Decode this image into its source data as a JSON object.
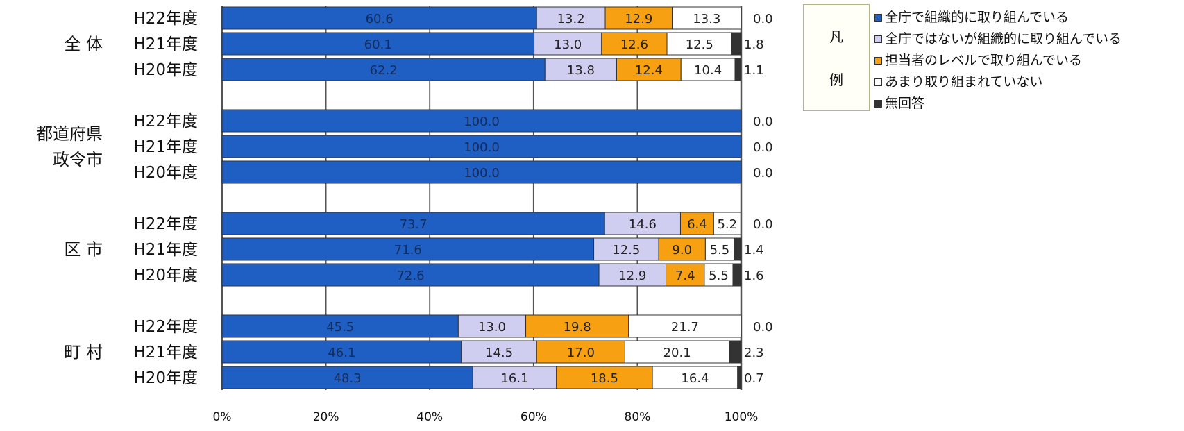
{
  "chart_data": {
    "type": "bar",
    "orientation": "horizontal",
    "stacked": true,
    "groups": [
      {
        "label": "全 体",
        "rows": [
          {
            "label": "H22年度",
            "values": [
              60.6,
              13.2,
              12.9,
              13.3,
              0.0
            ]
          },
          {
            "label": "H21年度",
            "values": [
              60.1,
              13.0,
              12.6,
              12.5,
              1.8
            ]
          },
          {
            "label": "H20年度",
            "values": [
              62.2,
              13.8,
              12.4,
              10.4,
              1.1
            ]
          }
        ]
      },
      {
        "label": "都道府県\n政令市",
        "rows": [
          {
            "label": "H22年度",
            "values": [
              100.0,
              0,
              0,
              0,
              0.0
            ]
          },
          {
            "label": "H21年度",
            "values": [
              100.0,
              0,
              0,
              0,
              0.0
            ]
          },
          {
            "label": "H20年度",
            "values": [
              100.0,
              0,
              0,
              0,
              0.0
            ]
          }
        ]
      },
      {
        "label": "区 市",
        "rows": [
          {
            "label": "H22年度",
            "values": [
              73.7,
              14.6,
              6.4,
              5.2,
              0.0
            ]
          },
          {
            "label": "H21年度",
            "values": [
              71.6,
              12.5,
              9.0,
              5.5,
              1.4
            ]
          },
          {
            "label": "H20年度",
            "values": [
              72.6,
              12.9,
              7.4,
              5.5,
              1.6
            ]
          }
        ]
      },
      {
        "label": "町 村",
        "rows": [
          {
            "label": "H22年度",
            "values": [
              45.5,
              13.0,
              19.8,
              21.7,
              0.0
            ]
          },
          {
            "label": "H21年度",
            "values": [
              46.1,
              14.5,
              17.0,
              20.1,
              2.3
            ]
          },
          {
            "label": "H20年度",
            "values": [
              48.3,
              16.1,
              18.5,
              16.4,
              0.7
            ]
          }
        ]
      }
    ],
    "series": [
      {
        "name": "全庁で組織的に取り組んでいる",
        "color": "#1f5fc4"
      },
      {
        "name": "全庁ではないが組織的に取り組んでいる",
        "color": "#cfcdf0"
      },
      {
        "name": "担当者のレベルで取り組んでいる",
        "color": "#f7a012"
      },
      {
        "name": "あまり取り組まれていない",
        "color": "#ffffff"
      },
      {
        "name": "無回答",
        "color": "#333333"
      }
    ],
    "xlim": [
      0,
      100
    ],
    "x_ticks": [
      "0%",
      "20%",
      "40%",
      "60%",
      "80%",
      "100%"
    ],
    "grid": true,
    "legend": {
      "title": "凡\n例",
      "placement": "right"
    }
  }
}
